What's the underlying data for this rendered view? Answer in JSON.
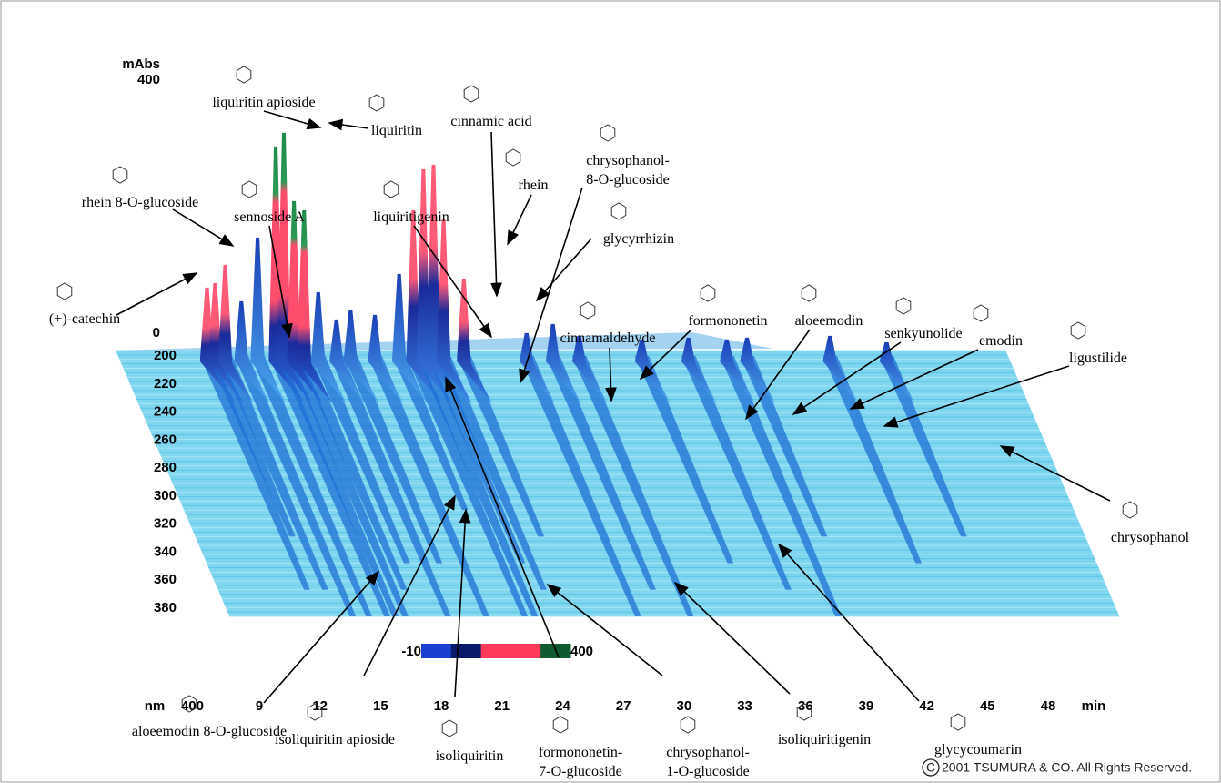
{
  "axes": {
    "absorbance": {
      "label": "mAbs",
      "ticks": [
        0,
        400
      ]
    },
    "wavelength": {
      "label": "nm",
      "ticks": [
        200,
        220,
        240,
        260,
        280,
        300,
        320,
        340,
        360,
        380,
        400
      ]
    },
    "time": {
      "label": "min",
      "ticks": [
        9,
        12,
        15,
        18,
        21,
        24,
        27,
        30,
        33,
        36,
        39,
        42,
        45,
        48
      ]
    }
  },
  "color_scale": {
    "ticks": [
      -10,
      400
    ],
    "colors": [
      "#1a3fd0",
      "#0a1a6a",
      "#ff3b5c",
      "#ff3b5c",
      "#0f5a30"
    ]
  },
  "compounds": [
    {
      "label": [
        "liquiritin apioside"
      ]
    },
    {
      "label": [
        "liquiritin"
      ]
    },
    {
      "label": [
        "rhein 8-O-glucoside"
      ]
    },
    {
      "label": [
        "sennoside A"
      ]
    },
    {
      "label": [
        "(+)-catechin"
      ]
    },
    {
      "label": [
        "liquiritigenin"
      ]
    },
    {
      "label": [
        "cinnamic acid"
      ]
    },
    {
      "label": [
        "rhein"
      ]
    },
    {
      "label": [
        "chrysophanol-",
        "8-O-glucoside"
      ]
    },
    {
      "label": [
        "glycyrrhizin"
      ]
    },
    {
      "label": [
        "cinnamaldehyde"
      ]
    },
    {
      "label": [
        "formononetin"
      ]
    },
    {
      "label": [
        "aloeemodin"
      ]
    },
    {
      "label": [
        "senkyunolide"
      ]
    },
    {
      "label": [
        "emodin"
      ]
    },
    {
      "label": [
        "ligustilide"
      ]
    },
    {
      "label": [
        "chrysophanol"
      ]
    },
    {
      "label": [
        "aloeemodin 8-O-glucoside"
      ]
    },
    {
      "label": [
        "isoliquiritin apioside"
      ]
    },
    {
      "label": [
        "isoliquiritin"
      ]
    },
    {
      "label": [
        "formononetin-",
        "7-O-glucoside"
      ]
    },
    {
      "label": [
        "chrysophanol-",
        "1-O-glucoside"
      ]
    },
    {
      "label": [
        "isoliquiritigenin"
      ]
    },
    {
      "label": [
        "glycycoumarin"
      ]
    }
  ],
  "copyright": {
    "symbol": "C",
    "text": "2001 TSUMURA & CO. All Rights Reserved."
  }
}
